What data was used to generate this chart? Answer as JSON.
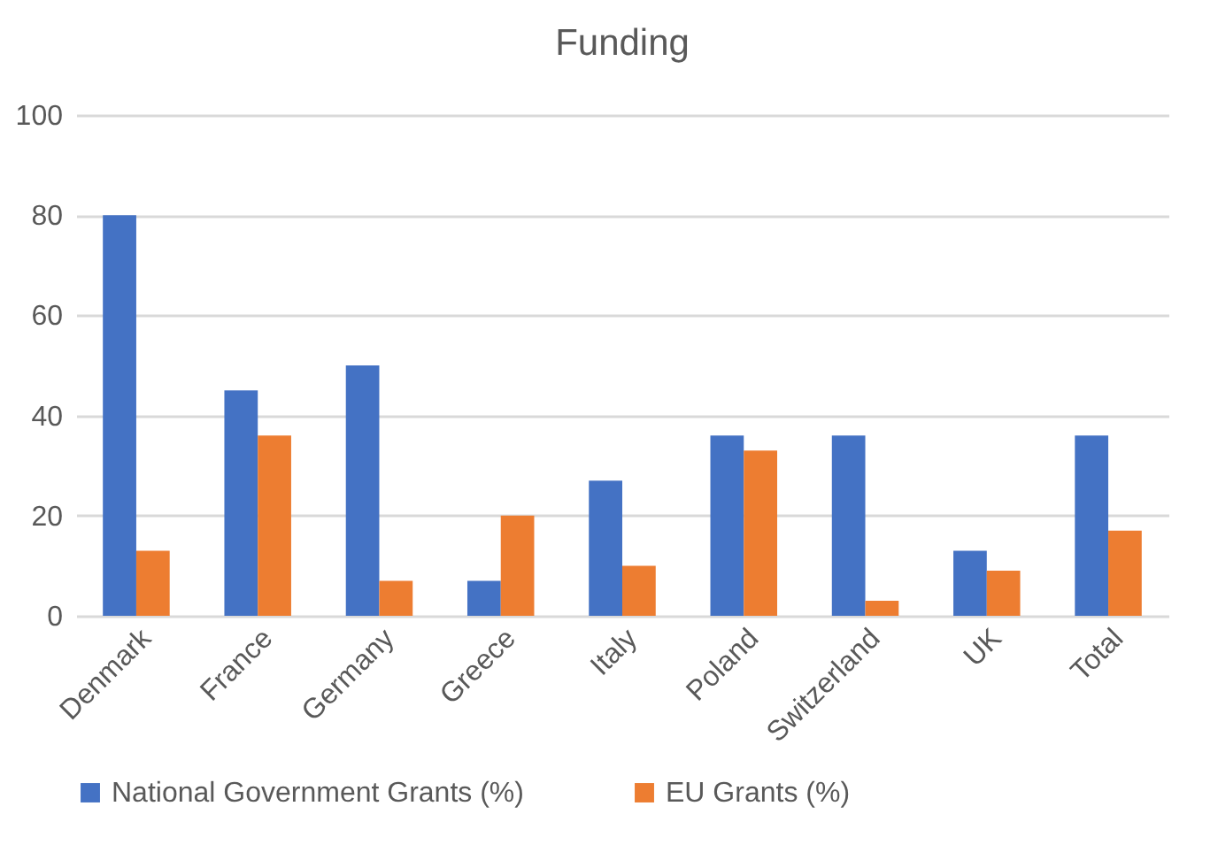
{
  "chart_data": {
    "type": "bar",
    "title": "Funding",
    "categories": [
      "Denmark",
      "France",
      "Germany",
      "Greece",
      "Italy",
      "Poland",
      "Switzerland",
      "UK",
      "Total"
    ],
    "series": [
      {
        "name": "National Government Grants (%)",
        "color": "#4472c4",
        "values": [
          80,
          45,
          50,
          7,
          27,
          36,
          36,
          13,
          36
        ]
      },
      {
        "name": "EU Grants (%)",
        "color": "#ed7d31",
        "values": [
          13,
          36,
          7,
          20,
          10,
          33,
          3,
          9,
          17
        ]
      }
    ],
    "ylim": [
      0,
      100
    ],
    "yticks": [
      0,
      20,
      40,
      60,
      80,
      100
    ],
    "grid": "y",
    "legend": "bottom"
  }
}
